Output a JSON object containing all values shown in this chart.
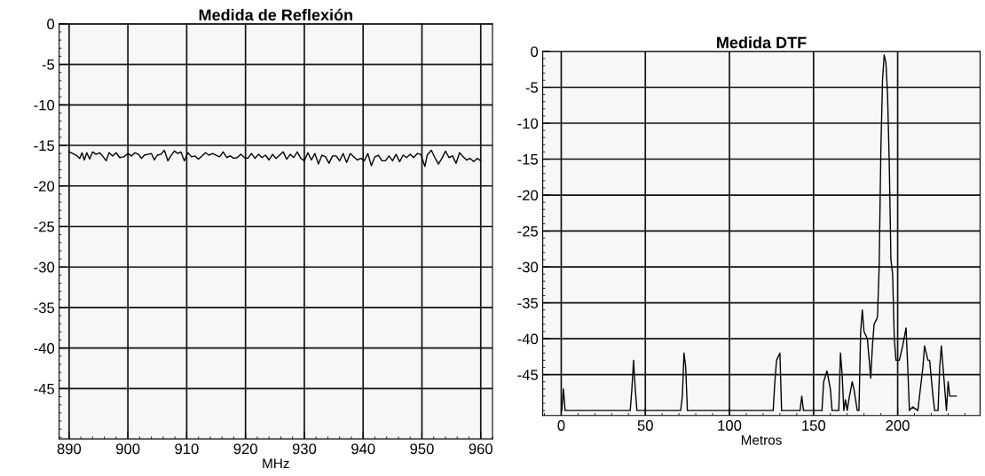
{
  "chart_data": [
    {
      "type": "line",
      "title": "Medida de Reflexión",
      "xlabel": "MHz",
      "xlim": [
        888.3,
        962
      ],
      "ylim": [
        -51.2,
        0
      ],
      "xticks": [
        890,
        900,
        910,
        920,
        930,
        940,
        950,
        960
      ],
      "yticks": [
        0,
        -5,
        -10,
        -15,
        -20,
        -25,
        -30,
        -35,
        -40,
        -45
      ],
      "grid": true,
      "series": [
        {
          "color": "#000000",
          "x": [
            890,
            890.6,
            891.2,
            891.8,
            892.2,
            892.6,
            893,
            893.5,
            894,
            894.6,
            895.2,
            895.8,
            896.3,
            896.8,
            897.4,
            898,
            898.6,
            899.3,
            900,
            900.6,
            901.2,
            901.8,
            902.3,
            902.8,
            903.4,
            904,
            904.5,
            905,
            905.6,
            906.2,
            906.8,
            907.3,
            907.9,
            908.5,
            909,
            909.6,
            910.2,
            910.8,
            911.4,
            912,
            912.6,
            913.2,
            913.8,
            914.4,
            915,
            915.6,
            916.2,
            916.8,
            917.4,
            918,
            918.6,
            919.2,
            919.8,
            920.4,
            921,
            921.6,
            922.2,
            922.8,
            923.4,
            924,
            924.6,
            925.2,
            925.8,
            926.4,
            927,
            927.6,
            928.2,
            928.8,
            929.4,
            930,
            930.6,
            931.2,
            931.8,
            932.4,
            933,
            933.6,
            934.2,
            934.8,
            935.4,
            936,
            936.6,
            937.2,
            937.8,
            938.4,
            939,
            939.6,
            940.2,
            940.8,
            941.4,
            942,
            942.6,
            943.2,
            943.8,
            944.4,
            945,
            945.6,
            946.2,
            946.8,
            947.4,
            948,
            948.6,
            949.2,
            949.8,
            950.5,
            950.9,
            951.6,
            952.2,
            952.8,
            953.4,
            954,
            954.6,
            955.2,
            955.8,
            956.4,
            957,
            957.6,
            958.2,
            958.8,
            959.4,
            960
          ],
          "values": [
            -15.8,
            -16.0,
            -16.2,
            -16.6,
            -15.9,
            -16.8,
            -15.9,
            -16.7,
            -15.8,
            -16.1,
            -15.9,
            -16.4,
            -16.9,
            -15.9,
            -16.3,
            -15.9,
            -16.5,
            -16.4,
            -16.0,
            -16.3,
            -15.9,
            -16.1,
            -16.6,
            -16.2,
            -16.1,
            -16.0,
            -16.8,
            -16.2,
            -16.1,
            -15.6,
            -16.9,
            -16.3,
            -15.7,
            -16.0,
            -15.8,
            -16.9,
            -15.9,
            -16.4,
            -16.3,
            -16.7,
            -16.3,
            -15.9,
            -16.2,
            -16.0,
            -16.2,
            -16.4,
            -15.8,
            -16.5,
            -16.3,
            -16.6,
            -16.5,
            -16.1,
            -16.5,
            -16.6,
            -16.0,
            -16.6,
            -16.1,
            -16.5,
            -16.2,
            -16.8,
            -16.1,
            -16.6,
            -16.2,
            -15.8,
            -16.7,
            -16.1,
            -16.5,
            -15.8,
            -16.6,
            -16.9,
            -15.9,
            -16.8,
            -16.0,
            -17.3,
            -16.2,
            -16.4,
            -17.2,
            -16.3,
            -16.3,
            -16.9,
            -16.0,
            -17.1,
            -16.0,
            -16.4,
            -16.8,
            -16.6,
            -16.9,
            -16.0,
            -17.5,
            -16.4,
            -16.2,
            -16.9,
            -16.9,
            -16.3,
            -16.9,
            -16.1,
            -17.0,
            -16.2,
            -16.5,
            -16.1,
            -16.5,
            -16.0,
            -16.1,
            -17.6,
            -16.2,
            -15.6,
            -16.5,
            -17.3,
            -16.6,
            -15.7,
            -16.5,
            -16.3,
            -17.2,
            -15.9,
            -16.4,
            -16.8,
            -16.6,
            -17.0,
            -16.6,
            -16.9
          ]
        }
      ]
    },
    {
      "type": "line",
      "title": "Medida DTF",
      "xlabel": "Metros",
      "xlim": [
        -11,
        249
      ],
      "ylim": [
        -50.7,
        0
      ],
      "xticks": [
        0,
        50,
        100,
        150,
        200
      ],
      "yticks": [
        0,
        -5,
        -10,
        -15,
        -20,
        -25,
        -30,
        -35,
        -40,
        -45
      ],
      "grid": true,
      "series": [
        {
          "color": "#000000",
          "x": [
            0.3,
            1.3,
            2.3,
            41,
            42,
            43,
            44,
            45,
            71,
            72,
            73,
            74,
            75,
            126,
            127,
            128,
            130,
            131,
            142,
            143,
            144,
            152,
            155,
            156,
            158,
            160,
            161,
            165,
            166,
            167,
            168,
            169,
            170,
            171,
            173,
            174,
            176,
            177,
            178,
            179,
            180,
            182,
            184,
            185,
            186,
            187,
            188,
            189,
            190,
            191,
            192,
            193,
            194,
            195,
            196,
            197,
            198,
            199,
            201,
            203,
            205,
            206,
            207,
            209,
            212,
            215,
            216,
            218,
            219,
            221,
            222,
            224,
            225,
            226,
            227,
            229,
            230,
            231,
            235
          ],
          "values": [
            -50,
            -47,
            -50,
            -50,
            -47,
            -43,
            -47,
            -50,
            -50,
            -48,
            -42,
            -44,
            -50,
            -50,
            -46,
            -43,
            -42,
            -50,
            -50,
            -48,
            -50,
            -50,
            -50,
            -46,
            -44.5,
            -47,
            -50,
            -50,
            -42,
            -45,
            -50,
            -48.5,
            -50,
            -48.5,
            -46,
            -47,
            -50,
            -50,
            -39,
            -36,
            -39,
            -40,
            -45.5,
            -41,
            -38,
            -37.5,
            -37,
            -30,
            -14,
            -4,
            -0.5,
            -1.5,
            -6,
            -15.5,
            -29,
            -31,
            -40,
            -43,
            -43,
            -41,
            -38.5,
            -44,
            -50,
            -49.5,
            -50,
            -44,
            -41,
            -43,
            -43,
            -48,
            -50,
            -50,
            -44,
            -41,
            -44,
            -50,
            -46,
            -48,
            -48
          ]
        }
      ]
    }
  ]
}
